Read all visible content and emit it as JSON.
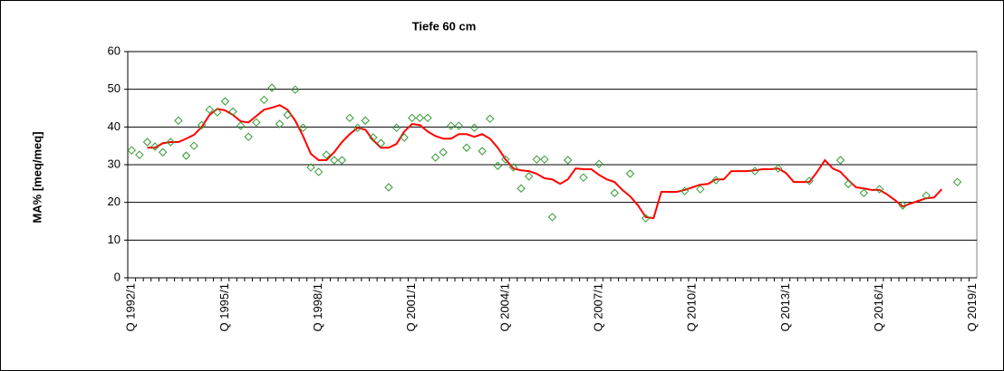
{
  "chart_data": {
    "type": "line",
    "title": "Tiefe  60 cm",
    "y_label": "MA% [meq/meq]",
    "categories": [
      "Q 1992/1",
      null,
      null,
      null,
      null,
      null,
      null,
      null,
      null,
      null,
      null,
      null,
      "Q 1995/1",
      null,
      null,
      null,
      null,
      null,
      null,
      null,
      null,
      null,
      null,
      null,
      "Q 1998/1",
      null,
      null,
      null,
      null,
      null,
      null,
      null,
      null,
      null,
      null,
      null,
      "Q 2001/1",
      null,
      null,
      null,
      null,
      null,
      null,
      null,
      null,
      null,
      null,
      null,
      "Q 2004/1",
      null,
      null,
      null,
      null,
      null,
      null,
      null,
      null,
      null,
      null,
      null,
      "Q 2007/1",
      null,
      null,
      null,
      null,
      null,
      null,
      null,
      null,
      null,
      null,
      null,
      "Q 2010/1",
      null,
      null,
      null,
      null,
      null,
      null,
      null,
      null,
      null,
      null,
      null,
      "Q 2013/1",
      null,
      null,
      null,
      null,
      null,
      null,
      null,
      null,
      null,
      null,
      null,
      "Q 2016/1",
      null,
      null,
      null,
      null,
      null,
      null,
      null,
      null,
      null,
      null,
      null,
      "Q 2019/1"
    ],
    "series": [
      {
        "color": "#ff0000",
        "line": true,
        "marker": "none",
        "values": [
          null,
          null,
          34.5,
          34.5,
          35.7,
          36,
          36,
          36.9,
          37.9,
          40,
          43.2,
          44.8,
          44.4,
          43.2,
          41.5,
          41.2,
          42.9,
          44.6,
          45.1,
          45.8,
          44.6,
          41.7,
          37.6,
          32.9,
          31.2,
          31.2,
          33.3,
          36,
          38.1,
          39.8,
          39.3,
          36.5,
          34.5,
          34.5,
          35.5,
          38.8,
          40.8,
          40.5,
          38.8,
          37.6,
          36.9,
          36.9,
          38.1,
          38.1,
          37.4,
          38.1,
          36.9,
          34.5,
          31.4,
          29,
          28.5,
          28.3,
          27.6,
          26.4,
          26.1,
          24.9,
          26.1,
          29,
          28.8,
          28.8,
          27.3,
          26.1,
          25.4,
          23.3,
          21.6,
          19.2,
          16.1,
          15.8,
          22.8,
          22.8,
          22.8,
          23.3,
          24,
          24.7,
          24.9,
          26.1,
          26.1,
          28.3,
          28.3,
          28.3,
          28.5,
          28.8,
          28.8,
          29,
          27.8,
          25.4,
          25.4,
          25.4,
          28.1,
          31.2,
          29,
          28.1,
          25.9,
          24,
          23.7,
          23.3,
          23.3,
          22.1,
          20.6,
          18.9,
          19.7,
          20.4,
          21.1,
          21.3,
          23.5,
          null,
          null,
          null,
          null
        ]
      },
      {
        "color": "#339933",
        "line": false,
        "marker": "diamond",
        "values": [
          33.8,
          32.6,
          36,
          34.8,
          33.3,
          36,
          41.7,
          32.4,
          35,
          40.5,
          44.6,
          43.9,
          46.8,
          44.1,
          40.3,
          37.4,
          41.2,
          47.2,
          50.4,
          40.8,
          43.2,
          49.9,
          39.8,
          29.3,
          28.1,
          32.6,
          31.2,
          31.2,
          42.4,
          39.8,
          41.7,
          37.2,
          35.7,
          24,
          39.8,
          37.2,
          42.4,
          42.4,
          42.4,
          31.9,
          33.3,
          40.3,
          40.3,
          34.5,
          39.8,
          33.6,
          42.2,
          29.7,
          31.4,
          29.3,
          23.7,
          26.9,
          31.4,
          31.4,
          16.1,
          null,
          31.2,
          null,
          26.6,
          null,
          30.2,
          null,
          22.5,
          null,
          27.6,
          null,
          15.8,
          null,
          null,
          null,
          null,
          23,
          null,
          23.5,
          null,
          25.9,
          null,
          null,
          null,
          null,
          28.3,
          null,
          null,
          29,
          null,
          null,
          null,
          25.7,
          null,
          null,
          null,
          31.2,
          24.9,
          null,
          22.5,
          null,
          23.5,
          null,
          null,
          19.2,
          null,
          null,
          21.8,
          null,
          null,
          null,
          25.4,
          null,
          null
        ]
      }
    ],
    "ylim": [
      0,
      60
    ],
    "yticks": [
      0,
      10,
      20,
      30,
      40,
      50,
      60
    ],
    "grid": true
  }
}
